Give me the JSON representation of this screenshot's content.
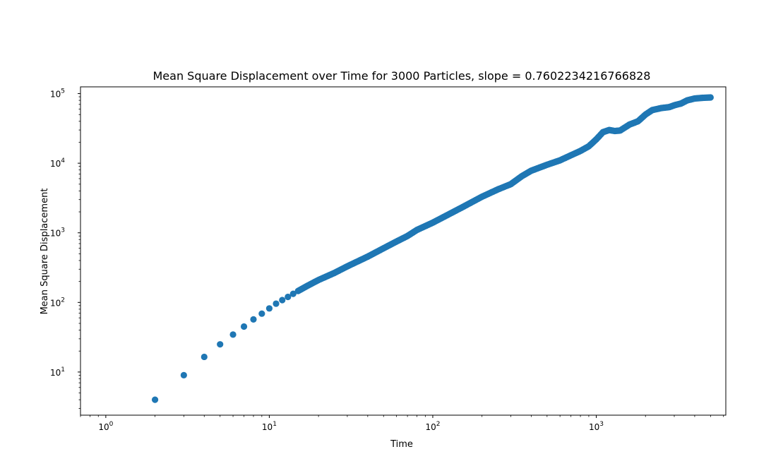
{
  "chart_data": {
    "type": "scatter",
    "title": "Mean Square Displacement over Time for 3000 Particles, slope = 0.7602234216766828",
    "xlabel": "Time",
    "ylabel": "Mean Square Displacement",
    "xscale": "log",
    "yscale": "log",
    "xlim": [
      0.7,
      6200
    ],
    "ylim": [
      2.4,
      125000
    ],
    "grid": false,
    "marker_color": "#1f77b4",
    "x_ticks": [
      {
        "base": "10",
        "exp": "0",
        "value": 1
      },
      {
        "base": "10",
        "exp": "1",
        "value": 10
      },
      {
        "base": "10",
        "exp": "2",
        "value": 100
      },
      {
        "base": "10",
        "exp": "3",
        "value": 1000
      }
    ],
    "y_ticks": [
      {
        "base": "10",
        "exp": "1",
        "value": 10
      },
      {
        "base": "10",
        "exp": "2",
        "value": 100
      },
      {
        "base": "10",
        "exp": "3",
        "value": 1000
      },
      {
        "base": "10",
        "exp": "4",
        "value": 10000
      },
      {
        "base": "10",
        "exp": "5",
        "value": 100000
      }
    ],
    "curve_points": [
      [
        2,
        4.0
      ],
      [
        3,
        9.0
      ],
      [
        4,
        16.5
      ],
      [
        5,
        25
      ],
      [
        6,
        34.5
      ],
      [
        7,
        45
      ],
      [
        8,
        57
      ],
      [
        9,
        69
      ],
      [
        10,
        82
      ],
      [
        11,
        96
      ],
      [
        12,
        108
      ],
      [
        13,
        120
      ],
      [
        14,
        133
      ],
      [
        15,
        146
      ],
      [
        17,
        172
      ],
      [
        20,
        210
      ],
      [
        25,
        265
      ],
      [
        30,
        330
      ],
      [
        40,
        455
      ],
      [
        50,
        600
      ],
      [
        60,
        750
      ],
      [
        70,
        900
      ],
      [
        80,
        1100
      ],
      [
        100,
        1400
      ],
      [
        120,
        1750
      ],
      [
        150,
        2300
      ],
      [
        200,
        3300
      ],
      [
        250,
        4200
      ],
      [
        300,
        5000
      ],
      [
        350,
        6500
      ],
      [
        400,
        7800
      ],
      [
        500,
        9500
      ],
      [
        600,
        11000
      ],
      [
        700,
        13000
      ],
      [
        800,
        15000
      ],
      [
        900,
        17500
      ],
      [
        1000,
        22000
      ],
      [
        1100,
        28000
      ],
      [
        1200,
        30000
      ],
      [
        1300,
        29000
      ],
      [
        1400,
        29500
      ],
      [
        1600,
        36000
      ],
      [
        1800,
        40000
      ],
      [
        2000,
        50000
      ],
      [
        2200,
        58000
      ],
      [
        2500,
        62000
      ],
      [
        2800,
        64000
      ],
      [
        3000,
        68000
      ],
      [
        3300,
        72000
      ],
      [
        3600,
        80000
      ],
      [
        4000,
        85000
      ],
      [
        4500,
        87000
      ],
      [
        5000,
        88000
      ]
    ]
  }
}
